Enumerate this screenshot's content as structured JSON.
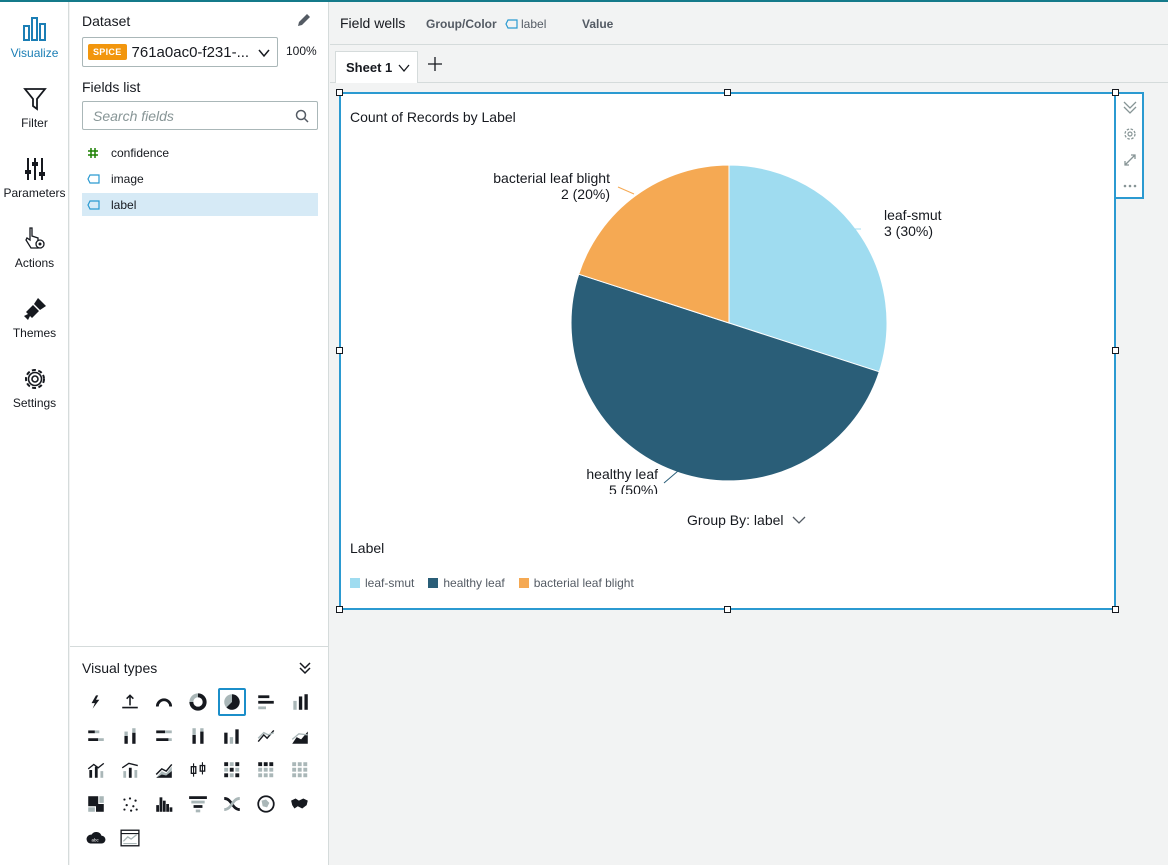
{
  "rail": {
    "items": [
      {
        "label": "Visualize",
        "icon": "bar-chart-icon",
        "active": true
      },
      {
        "label": "Filter",
        "icon": "funnel-icon"
      },
      {
        "label": "Parameters",
        "icon": "sliders-icon"
      },
      {
        "label": "Actions",
        "icon": "pointer-gear-icon"
      },
      {
        "label": "Themes",
        "icon": "paintbrush-icon"
      },
      {
        "label": "Settings",
        "icon": "gear-icon"
      }
    ]
  },
  "fieldpanel": {
    "dataset_label": "Dataset",
    "spice_badge": "SPICE",
    "dataset_name": "761a0ac0-f231-...",
    "spice_percent": "100%",
    "fields_list_label": "Fields list",
    "search_placeholder": "Search fields",
    "fields": [
      {
        "name": "confidence",
        "type": "number",
        "icon": "hash-icon",
        "icon_color": "#1d8102"
      },
      {
        "name": "image",
        "type": "dimension",
        "icon": "tag-icon",
        "icon_color": "#2b9ad1"
      },
      {
        "name": "label",
        "type": "dimension",
        "icon": "tag-icon",
        "icon_color": "#2b9ad1",
        "selected": true
      }
    ],
    "visual_types_label": "Visual types",
    "visual_types": [
      "autograph-icon",
      "kpi-icon",
      "gauge-icon",
      "donut-icon",
      "pie-icon",
      "horizontal-bar-icon",
      "vertical-bar-icon",
      "horizontal-stacked-bar-icon",
      "vertical-stacked-bar-icon",
      "horizontal-100-bar-icon",
      "vertical-100-bar-icon",
      "waterfall-icon",
      "line-icon",
      "area-line-icon",
      "combo-bar-line-icon",
      "combo-stacked-line-icon",
      "stacked-area-icon",
      "box-plot-icon",
      "heat-map-icon",
      "pivot-table-icon",
      "table-icon",
      "tree-map-icon",
      "scatter-icon",
      "histogram-icon",
      "funnel-chart-icon",
      "sankey-icon",
      "geo-point-icon",
      "filled-map-icon",
      "word-cloud-icon",
      "insight-icon"
    ],
    "selected_visual_type": "pie-icon"
  },
  "wells": {
    "title": "Field wells",
    "group_color_label": "Group/Color",
    "group_color_field": "label",
    "value_label": "Value"
  },
  "tabs": {
    "sheet_label": "Sheet 1"
  },
  "visual": {
    "title": "Count of Records by Label",
    "group_by_label": "Group By: label",
    "legend_title": "Label"
  },
  "colors": {
    "leaf_smut": "#9fdcf0",
    "healthy_leaf": "#2a5e78",
    "bacterial_leaf_blight": "#f5a953",
    "accent": "#2b9ad1"
  },
  "chart_data": {
    "type": "pie",
    "title": "Count of Records by Label",
    "categories": [
      "leaf-smut",
      "healthy leaf",
      "bacterial leaf blight"
    ],
    "values": [
      3,
      5,
      2
    ],
    "percent_labels": [
      "3 (30%)",
      "5 (50%)",
      "2 (20%)"
    ],
    "colors": [
      "#9fdcf0",
      "#2a5e78",
      "#f5a953"
    ],
    "legend_title": "Label",
    "legend_placement": "bottom-left"
  }
}
